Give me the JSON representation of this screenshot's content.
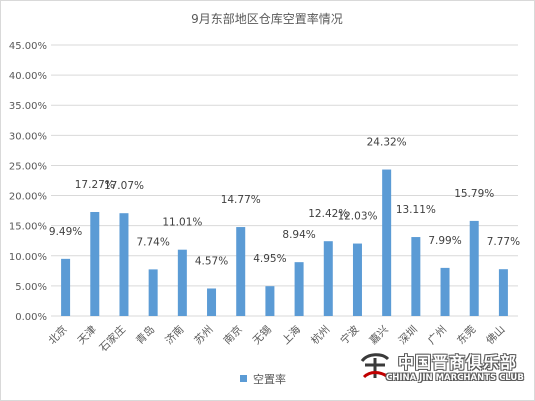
{
  "chart_data": {
    "type": "bar",
    "title": "9月东部地区仓库空置率情况",
    "xlabel": "",
    "ylabel": "",
    "categories": [
      "北京",
      "天津",
      "石家庄",
      "青岛",
      "济南",
      "苏州",
      "南京",
      "无锡",
      "上海",
      "杭州",
      "宁波",
      "嘉兴",
      "深圳",
      "广州",
      "东莞",
      "佛山"
    ],
    "series": [
      {
        "name": "空置率",
        "values": [
          9.49,
          17.27,
          17.07,
          7.74,
          11.01,
          4.57,
          14.77,
          4.95,
          8.94,
          12.42,
          12.03,
          24.32,
          13.11,
          7.99,
          15.79,
          7.77
        ],
        "labels": [
          "9.49%",
          "17.27%",
          "17.07%",
          "7.74%",
          "11.01%",
          "4.57%",
          "14.77%",
          "4.95%",
          "8.94%",
          "12.42%",
          "12.03%",
          "24.32%",
          "13.11%",
          "7.99%",
          "15.79%",
          "7.77%"
        ]
      }
    ],
    "ylim": [
      0,
      45
    ],
    "yticks": [
      0,
      5,
      10,
      15,
      20,
      25,
      30,
      35,
      40,
      45
    ],
    "ytick_labels": [
      "0.00%",
      "5.00%",
      "10.00%",
      "15.00%",
      "20.00%",
      "25.00%",
      "30.00%",
      "35.00%",
      "40.00%",
      "45.00%"
    ],
    "grid": true,
    "legend_position": "bottom",
    "bar_color": "#5b9bd5",
    "grid_color": "#d9d9d9"
  },
  "watermark": {
    "text_cn": "中国晋商俱乐部",
    "text_en": "CHINA JIN MARCHANTS CLUB",
    "logo_icon": "jin-club-logo"
  }
}
